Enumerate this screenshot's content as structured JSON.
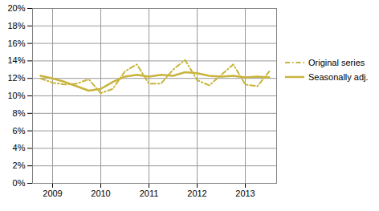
{
  "chart_data": {
    "type": "line",
    "categories": [
      null,
      "2009",
      null,
      null,
      null,
      "2010",
      null,
      null,
      null,
      "2011",
      null,
      null,
      null,
      "2012",
      null,
      null,
      null,
      "2013",
      null,
      null
    ],
    "series": [
      {
        "name": "Original series",
        "color": "#c8b43c",
        "line_style": "dashdot",
        "values": [
          12.0,
          11.5,
          11.3,
          11.4,
          11.9,
          10.3,
          10.8,
          12.8,
          13.6,
          11.4,
          11.4,
          13.0,
          14.1,
          11.8,
          11.2,
          12.4,
          13.6,
          11.3,
          11.1,
          12.8
        ]
      },
      {
        "name": "Seasonally adj.",
        "color": "#c8b43c",
        "line_style": "solid",
        "values": [
          12.3,
          12.0,
          11.6,
          11.1,
          10.6,
          10.8,
          11.6,
          12.2,
          12.4,
          12.2,
          12.4,
          12.3,
          12.7,
          12.6,
          12.3,
          12.2,
          12.3,
          12.1,
          12.2,
          12.1
        ]
      }
    ],
    "ylim": [
      0,
      20
    ],
    "yticks": [
      {
        "value": 0,
        "label": "0%"
      },
      {
        "value": 2,
        "label": "2%"
      },
      {
        "value": 4,
        "label": "4%"
      },
      {
        "value": 6,
        "label": "6%"
      },
      {
        "value": 8,
        "label": "8%"
      },
      {
        "value": 10,
        "label": "10%"
      },
      {
        "value": 12,
        "label": "12%"
      },
      {
        "value": 14,
        "label": "14%"
      },
      {
        "value": 16,
        "label": "16%"
      },
      {
        "value": 18,
        "label": "18%"
      },
      {
        "value": 20,
        "label": "20%"
      }
    ],
    "grid": true,
    "legend": "right"
  }
}
